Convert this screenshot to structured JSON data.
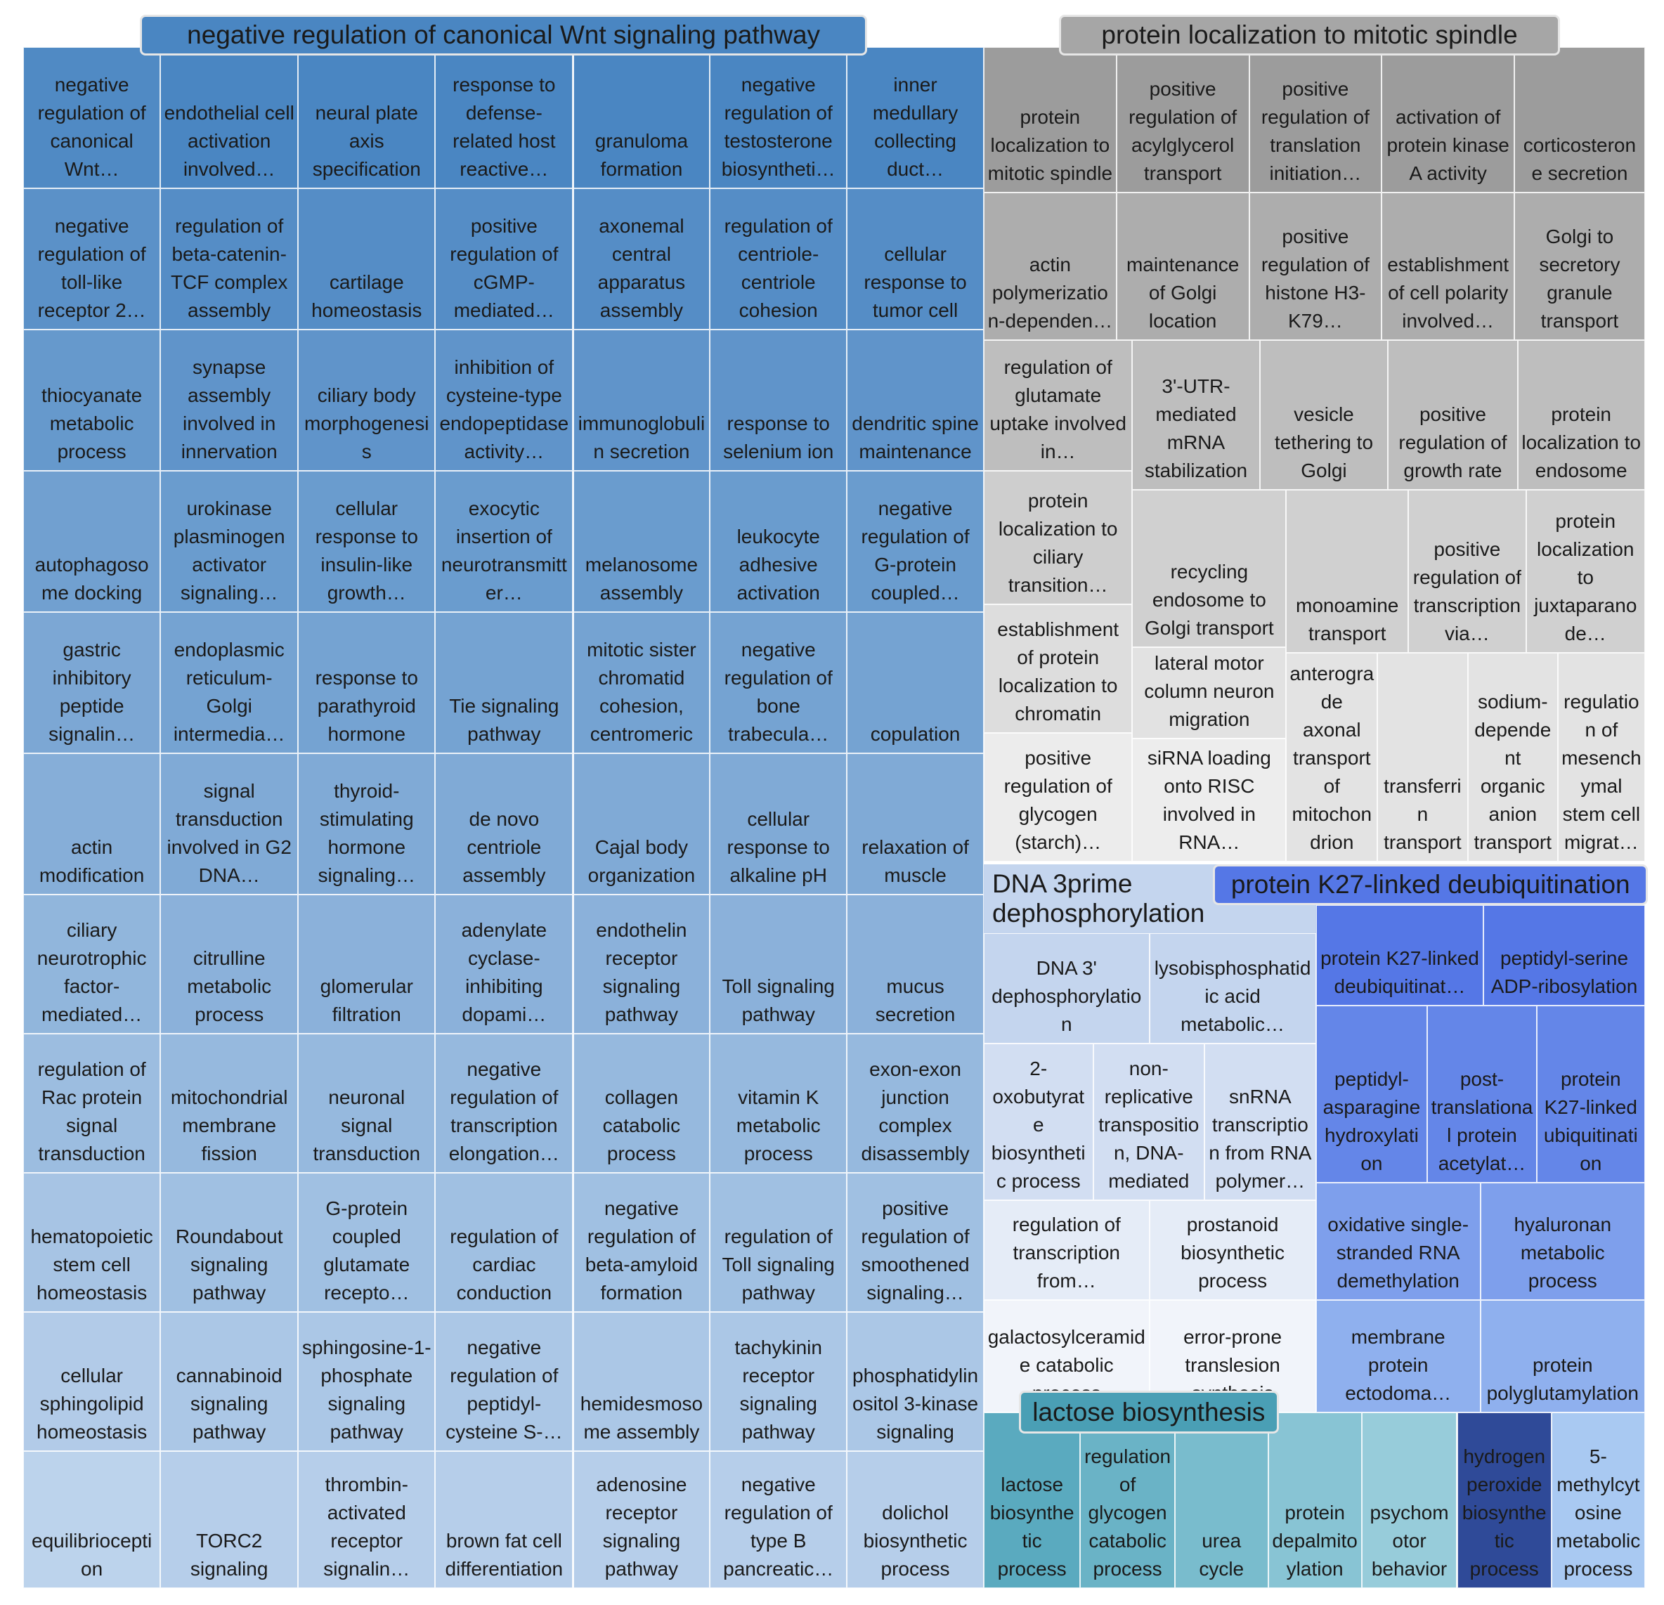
{
  "groups": [
    {
      "title": "negative regulation of canonical Wnt signaling pathway",
      "cells": [
        "negative regulation of canonical Wnt…",
        "endothelial cell activation involved…",
        "neural plate axis specification",
        "response to defense-related host reactive…",
        "granuloma formation",
        "negative regulation of testosterone biosyntheti…",
        "inner medullary collecting duct…",
        "negative regulation of toll-like receptor 2…",
        "regulation of beta-catenin-TCF complex assembly",
        "cartilage homeostasis",
        "positive regulation of cGMP-mediated…",
        "axonemal central apparatus assembly",
        "regulation of centriole-centriole cohesion",
        "cellular response to tumor cell",
        "thiocyanate metabolic process",
        "synapse assembly involved in innervation",
        "ciliary body morphogenesis",
        "inhibition of cysteine-type endopeptidase activity…",
        "immunoglobulin secretion",
        "response to selenium ion",
        "dendritic spine maintenance",
        "autophagosome docking",
        "urokinase plasminogen activator signaling…",
        "cellular response to insulin-like growth…",
        "exocytic insertion of neurotransmitter…",
        "melanosome assembly",
        "leukocyte adhesive activation",
        "negative regulation of G-protein coupled…",
        "gastric inhibitory peptide signalin…",
        "endoplasmic reticulum-Golgi intermedia…",
        "response to parathyroid hormone",
        "Tie signaling pathway",
        "mitotic sister chromatid cohesion, centromeric",
        "negative regulation of bone trabecula…",
        "copulation",
        "actin modification",
        "signal transduction involved in G2 DNA…",
        "thyroid-stimulating hormone signaling…",
        "de novo centriole assembly",
        "Cajal body organization",
        "cellular response to alkaline pH",
        "relaxation of muscle",
        "ciliary neurotrophic factor-mediated…",
        "citrulline metabolic process",
        "glomerular filtration",
        "adenylate cyclase-inhibiting dopami…",
        "endothelin receptor signaling pathway",
        "Toll signaling pathway",
        "mucus secretion",
        "regulation of Rac protein signal transduction",
        "mitochondrial membrane fission",
        "neuronal signal transduction",
        "negative regulation of transcription elongation…",
        "collagen catabolic process",
        "vitamin K metabolic process",
        "exon-exon junction complex disassembly",
        "hematopoietic stem cell homeostasis",
        "Roundabout signaling pathway",
        "G-protein coupled glutamate recepto…",
        "regulation of cardiac conduction",
        "negative regulation of beta-amyloid formation",
        "regulation of Toll signaling pathway",
        "positive regulation of smoothened signaling…",
        "cellular sphingolipid homeostasis",
        "cannabinoid signaling pathway",
        "sphingosine-1-phosphate signaling pathway",
        "negative regulation of peptidyl-cysteine S-…",
        "hemidesmosome assembly",
        "tachykinin receptor signaling pathway",
        "phosphatidylinositol 3-kinase signaling",
        "equilibrioception",
        "TORC2 signaling",
        "thrombin-activated receptor signalin…",
        "brown fat cell differentiation",
        "adenosine receptor signaling pathway",
        "negative regulation of type B pancreatic…",
        "dolichol biosynthetic process"
      ]
    },
    {
      "title": "protein localization to mitotic spindle",
      "cells": [
        "protein localization to mitotic spindle",
        "positive regulation of acylglycerol transport",
        "positive regulation of translation initiation…",
        "activation of protein kinase A activity",
        "corticosterone secretion",
        "actin polymerization-dependen…",
        "maintenance of Golgi location",
        "positive regulation of histone H3-K79…",
        "establishment of cell polarity involved…",
        "Golgi to secretory granule transport",
        "regulation of glutamate uptake involved in…",
        "protein localization to ciliary transition…",
        "establishment of protein localization to chromatin",
        "positive regulation of glycogen (starch)…",
        "3'-UTR-mediated mRNA stabilization",
        "vesicle tethering to Golgi",
        "positive regulation of growth rate",
        "protein localization to endosome",
        "recycling endosome to Golgi transport",
        "lateral motor column neuron migration",
        "siRNA loading onto RISC involved in RNA…",
        "monoamine transport",
        "positive regulation of transcription via…",
        "protein localization to juxtaparanode…",
        "anterograde axonal transport of mitochondrion",
        "transferrin transport",
        "sodium-dependent organic anion transport",
        "regulation of mesenchymal stem cell migrat…"
      ]
    },
    {
      "title": "DNA 3prime dephosphorylation",
      "cells": [
        "DNA 3' dephosphorylation",
        "lysobisphosphatidic acid metabolic…",
        "2-oxobutyrate biosynthetic process",
        "non-replicative transposition, DNA-mediated",
        "snRNA transcription from RNA polymer…",
        "regulation of transcription from…",
        "prostanoid biosynthetic process",
        "galactosylceramide catabolic process",
        "error-prone translesion synthesis"
      ]
    },
    {
      "title": "protein K27-linked deubiquitination",
      "cells": [
        "protein K27-linked deubiquitinat…",
        "peptidyl-serine ADP-ribosylation",
        "peptidyl-asparagine hydroxylation",
        "post-translational protein acetylat…",
        "protein K27-linked ubiquitination",
        "oxidative single-stranded RNA demethylation",
        "hyaluronan metabolic process",
        "membrane protein ectodoma…",
        "protein polyglutamylation"
      ]
    },
    {
      "title": "lactose biosynthesis",
      "cells": [
        "lactose biosynthetic process",
        "regulation of glycogen catabolic process",
        "urea cycle",
        "protein depalmitoylation",
        "psychomotor behavior",
        "hydrogen peroxide biosynthetic process",
        "5-methylcytosine metabolic process"
      ]
    }
  ]
}
